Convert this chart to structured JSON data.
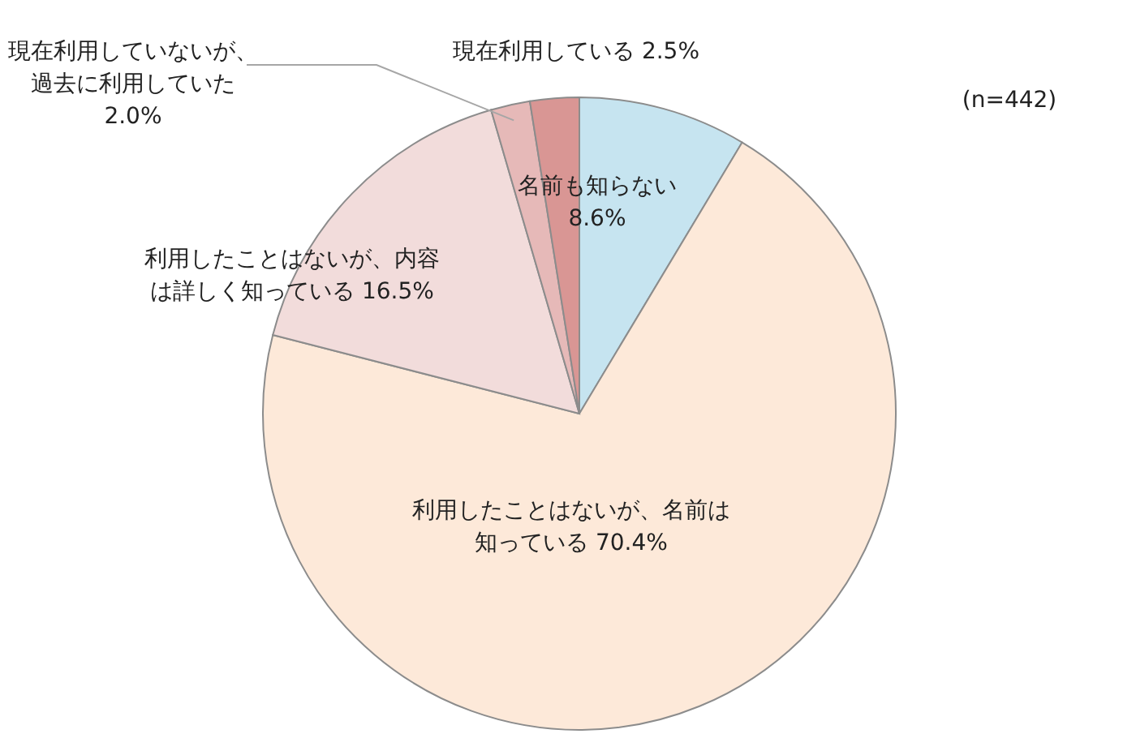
{
  "chart_data": {
    "type": "pie",
    "categories": [
      "名前も知らない",
      "利用したことはないが、名前は知っている",
      "利用したことはないが、内容は詳しく知っている",
      "現在利用していないが、過去に利用していた",
      "現在利用している"
    ],
    "values": [
      8.6,
      70.4,
      16.5,
      2.0,
      2.5
    ],
    "colors": [
      "#c6e4f0",
      "#fde9d9",
      "#f2dcdb",
      "#e6b9b8",
      "#d99694"
    ],
    "value_labels": [
      "8.6%",
      "70.4%",
      "16.5%",
      "2.0%",
      "2.5%"
    ],
    "annotations": [
      "(n=442)"
    ]
  }
}
